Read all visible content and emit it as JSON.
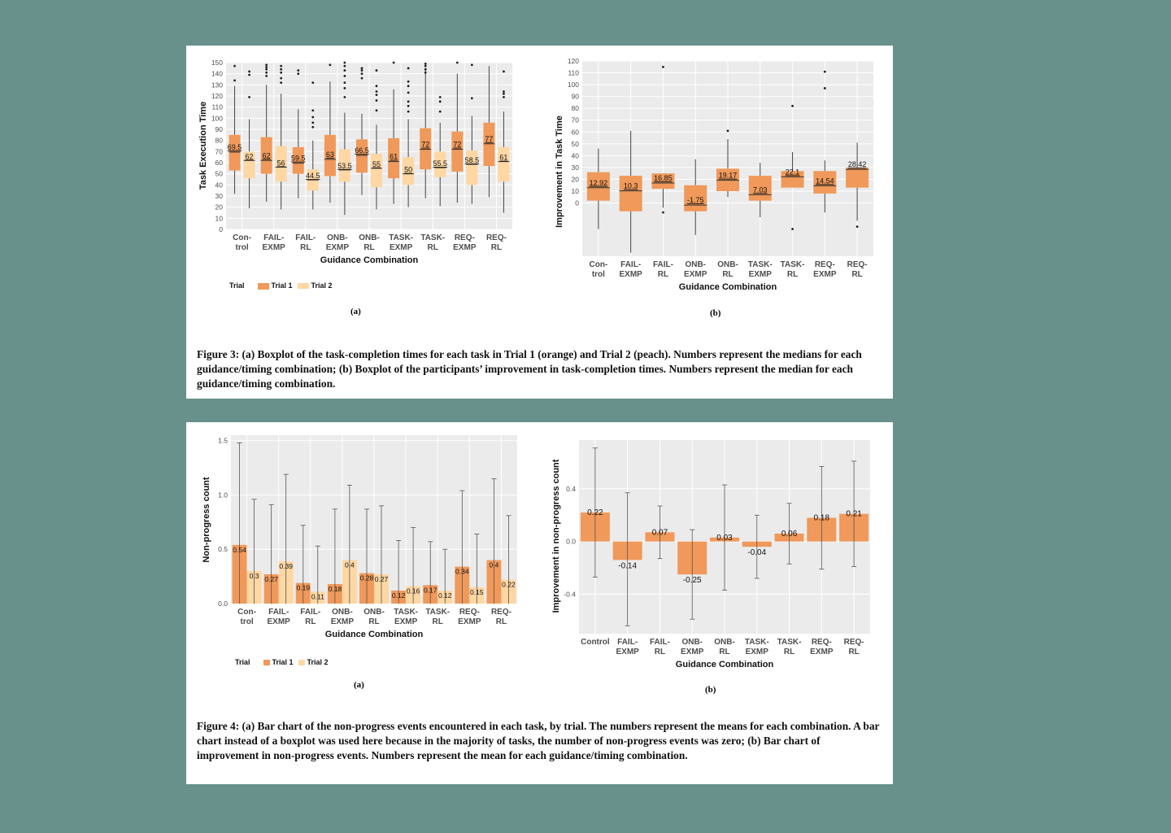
{
  "colors": {
    "trial1": "#f0995a",
    "trial2": "#fed7a3",
    "improvement": "#f0995a",
    "plot_bg": "#ebebeb",
    "grid": "#ffffff"
  },
  "figure3": {
    "sub_a": "(a)",
    "sub_b": "(b)",
    "caption": "Figure 3: (a) Boxplot of the task-completion times for each task in Trial 1 (orange) and Trial 2 (peach). Numbers represent the medians for each guidance/timing combination; (b) Boxplot of the participants’ improvement in task-completion times. Numbers represent the median for each guidance/timing combination."
  },
  "figure4": {
    "sub_a": "(a)",
    "sub_b": "(b)",
    "caption": "Figure 4: (a) Bar chart of the non-progress events encountered in each task, by trial. The numbers represent the means for each combination. A bar chart instead of a boxplot was used here because in the majority of tasks, the number of non-progress events was zero; (b) Bar chart of improvement in non-progress events. Numbers represent the mean for each guidance/timing combination."
  },
  "legend_a3": {
    "title": "Trial",
    "items": [
      "Trial 1",
      "Trial 2"
    ]
  },
  "legend_a4": {
    "title": "Trial",
    "items": [
      "Trial 1",
      "Trial 2"
    ]
  },
  "chart_data": [
    {
      "id": "fig3a",
      "type": "boxplot",
      "xlabel": "Guidance Combination",
      "ylabel": "Task Execution Time",
      "ylim": [
        0,
        150
      ],
      "yticks": [
        0,
        10,
        20,
        30,
        40,
        50,
        60,
        70,
        80,
        90,
        100,
        110,
        120,
        130,
        140,
        150
      ],
      "categories": [
        [
          "Con-",
          "trol"
        ],
        [
          "FAIL-",
          "EXMP"
        ],
        [
          "FAIL-",
          "RL"
        ],
        [
          "ONB-",
          "EXMP"
        ],
        [
          "ONB-",
          "RL"
        ],
        [
          "TASK-",
          "EXMP"
        ],
        [
          "TASK-",
          "RL"
        ],
        [
          "REQ-",
          "EXMP"
        ],
        [
          "REQ-",
          "RL"
        ]
      ],
      "series": [
        {
          "name": "Trial 1",
          "medians": [
            69.5,
            62,
            59.5,
            63,
            66.5,
            61,
            72,
            72,
            77
          ],
          "median_labels": [
            "69.5",
            "62",
            "59.5",
            "63",
            "66.5",
            "61",
            "72",
            "72",
            "77"
          ],
          "q1": [
            53,
            50,
            50,
            48,
            51,
            46,
            54,
            52,
            57
          ],
          "q3": [
            85,
            83,
            74,
            85,
            81,
            82,
            91,
            88,
            96
          ],
          "whisker_low": [
            32,
            25,
            28,
            24,
            31,
            23,
            28,
            24,
            29
          ],
          "whisker_high": [
            129,
            130,
            108,
            133,
            104,
            126,
            145,
            140,
            147
          ],
          "outliers": [
            [
              134,
              147
            ],
            [
              138,
              141,
              144,
              146,
              148
            ],
            [
              140,
              143
            ],
            [
              148
            ],
            [
              136,
              140,
              143,
              145
            ],
            [
              150
            ],
            [
              141,
              144,
              147,
              149
            ],
            [
              150
            ],
            []
          ]
        },
        {
          "name": "Trial 2",
          "medians": [
            62,
            56,
            44.5,
            53.5,
            55,
            50,
            55.5,
            58.5,
            61
          ],
          "median_labels": [
            "62",
            "56",
            "44.5",
            "53.5",
            "55",
            "50",
            "55.5",
            "58.5",
            "61"
          ],
          "q1": [
            46,
            43,
            35,
            43,
            38,
            40,
            47,
            40,
            43
          ],
          "q3": [
            70,
            75,
            54,
            72,
            68,
            65,
            70,
            71,
            74
          ],
          "whisker_low": [
            19,
            18,
            18,
            13,
            18,
            20,
            21,
            23,
            15
          ],
          "whisker_high": [
            99,
            122,
            80,
            105,
            94,
            99,
            96,
            102,
            106
          ],
          "outliers": [
            [
              119,
              139,
              142
            ],
            [
              132,
              136,
              141,
              144,
              147
            ],
            [
              92,
              96,
              101,
              107,
              132
            ],
            [
              119,
              127,
              132,
              138,
              143,
              147,
              150
            ],
            [
              107,
              116,
              121,
              124,
              129,
              143
            ],
            [
              106,
              111,
              115,
              123,
              129,
              133,
              145
            ],
            [
              106,
              115,
              119
            ],
            [
              118,
              148
            ],
            [
              119,
              122,
              124,
              142
            ]
          ]
        }
      ],
      "legend": [
        "Trial 1",
        "Trial 2"
      ],
      "legend_title": "Trial"
    },
    {
      "id": "fig3b",
      "type": "boxplot",
      "xlabel": "Guidance Combination",
      "ylabel": "Improvement in Task Time",
      "ylim": [
        -45,
        120
      ],
      "yticks": [
        0,
        10,
        20,
        30,
        40,
        50,
        60,
        70,
        80,
        90,
        100,
        110,
        120
      ],
      "categories": [
        [
          "Con-",
          "trol"
        ],
        [
          "FAIL-",
          "EXMP"
        ],
        [
          "FAIL-",
          "RL"
        ],
        [
          "ONB-",
          "EXMP"
        ],
        [
          "ONB-",
          "RL"
        ],
        [
          "TASK-",
          "EXMP"
        ],
        [
          "TASK-",
          "RL"
        ],
        [
          "REQ-",
          "EXMP"
        ],
        [
          "REQ-",
          "RL"
        ]
      ],
      "medians": [
        12.92,
        10.3,
        16.85,
        -1.75,
        19.17,
        7.03,
        22.1,
        14.54,
        28.42
      ],
      "median_labels": [
        "12.92",
        "10.3",
        "16.85",
        "-1.75",
        "19.17",
        "7.03",
        "22.1",
        "14.54",
        "28.42"
      ],
      "q1": [
        2,
        -7,
        12,
        -7,
        10,
        2,
        13,
        8,
        13
      ],
      "q3": [
        26,
        23,
        25,
        15,
        29,
        23,
        27,
        27,
        30
      ],
      "whisker_low": [
        -22,
        -42,
        -4,
        -27,
        5,
        -12,
        13,
        -8,
        -15
      ],
      "whisker_high": [
        46,
        61,
        25,
        37,
        54,
        34,
        43,
        36,
        51
      ],
      "outliers": [
        [],
        [],
        [
          115,
          -8
        ],
        [],
        [
          61
        ],
        [],
        [
          82,
          -22
        ],
        [
          111,
          97
        ],
        [
          -20
        ]
      ]
    },
    {
      "id": "fig4a",
      "type": "bar",
      "xlabel": "Guidance Combination",
      "ylabel": "Non-progress count",
      "ylim": [
        0,
        1.5
      ],
      "yticks": [
        0.0,
        0.5,
        1.0,
        1.5
      ],
      "categories": [
        [
          "Con-",
          "trol"
        ],
        [
          "FAIL-",
          "EXMP"
        ],
        [
          "FAIL-",
          "RL"
        ],
        [
          "ONB-",
          "EXMP"
        ],
        [
          "ONB-",
          "RL"
        ],
        [
          "TASK-",
          "EXMP"
        ],
        [
          "TASK-",
          "RL"
        ],
        [
          "REQ-",
          "EXMP"
        ],
        [
          "REQ-",
          "RL"
        ]
      ],
      "series": [
        {
          "name": "Trial 1",
          "values": [
            0.54,
            0.27,
            0.19,
            0.18,
            0.28,
            0.12,
            0.17,
            0.34,
            0.4
          ],
          "labels": [
            "0.54",
            "0.27",
            "0.19",
            "0.18",
            "0.28",
            "0.12",
            "0.17",
            "0.34",
            "0.4"
          ],
          "error_high": [
            1.48,
            0.91,
            0.72,
            0.87,
            0.87,
            0.58,
            0.57,
            1.04,
            1.15
          ]
        },
        {
          "name": "Trial 2",
          "values": [
            0.3,
            0.39,
            0.11,
            0.4,
            0.27,
            0.16,
            0.12,
            0.15,
            0.22
          ],
          "labels": [
            "0.3",
            "0.39",
            "0.11",
            "0.4",
            "0.27",
            "0.16",
            "0.12",
            "0.15",
            "0.22"
          ],
          "error_high": [
            0.96,
            1.19,
            0.53,
            1.09,
            0.9,
            0.7,
            0.5,
            0.64,
            0.81
          ]
        }
      ],
      "legend": [
        "Trial 1",
        "Trial 2"
      ],
      "legend_title": "Trial"
    },
    {
      "id": "fig4b",
      "type": "bar",
      "xlabel": "Guidance Combination",
      "ylabel": "Improvement in non-progress count",
      "ylim": [
        -0.7,
        0.77
      ],
      "yticks": [
        -0.4,
        0.0,
        0.4
      ],
      "yticklabels": [
        "-0.4",
        "0.0",
        "0.4"
      ],
      "categories": [
        [
          "Control"
        ],
        [
          "FAIL-",
          "EXMP"
        ],
        [
          "FAIL-",
          "RL"
        ],
        [
          "ONB-",
          "EXMP"
        ],
        [
          "ONB-",
          "RL"
        ],
        [
          "TASK-",
          "EXMP"
        ],
        [
          "TASK-",
          "RL"
        ],
        [
          "REQ-",
          "EXMP"
        ],
        [
          "REQ-",
          "RL"
        ]
      ],
      "values": [
        0.22,
        -0.14,
        0.07,
        -0.25,
        0.03,
        -0.04,
        0.06,
        0.18,
        0.21
      ],
      "labels": [
        "0.22",
        "-0.14",
        "0.07",
        "-0.25",
        "0.03",
        "-0.04",
        "0.06",
        "0.18",
        "0.21"
      ],
      "error_low": [
        -0.27,
        -0.64,
        -0.13,
        -0.59,
        -0.37,
        -0.28,
        -0.17,
        -0.21,
        -0.19
      ],
      "error_high": [
        0.71,
        0.37,
        0.27,
        0.09,
        0.43,
        0.2,
        0.29,
        0.57,
        0.61
      ]
    }
  ]
}
